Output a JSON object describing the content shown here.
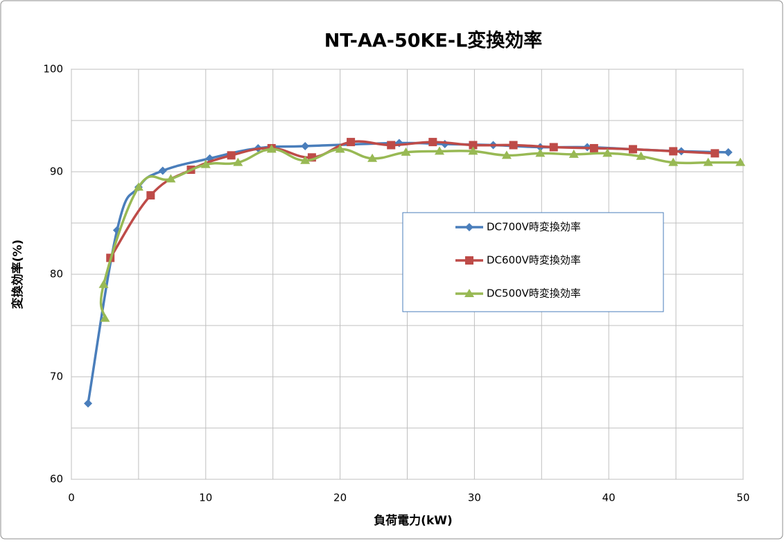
{
  "chart_data": {
    "type": "line",
    "title": "NT-AA-50KE-L変換効率",
    "x_label": "負荷電力(kW)",
    "y_label": "変換効率(%)",
    "xlim": [
      0,
      50
    ],
    "xticks": [
      0,
      10,
      20,
      30,
      40,
      50
    ],
    "x_minor_grid": [
      5,
      15,
      25,
      35,
      45
    ],
    "ylim": [
      60,
      100
    ],
    "yticks": [
      60,
      70,
      80,
      90,
      100
    ],
    "y_minor_grid": [
      65,
      75,
      85,
      95
    ],
    "grid": true,
    "legend": "right",
    "series": [
      {
        "name": "DC700V時変換効率",
        "color": "#4a7ebb",
        "marker": "diamond",
        "x": [
          1.24,
          3.4,
          5.0,
          6.8,
          10.3,
          13.9,
          17.4,
          24.4,
          27.8,
          31.4,
          34.9,
          38.4,
          41.8,
          45.4,
          48.9
        ],
        "values": [
          67.4,
          84.3,
          88.5,
          90.1,
          91.3,
          92.3,
          92.5,
          92.8,
          92.7,
          92.6,
          92.4,
          92.4,
          92.2,
          92.0,
          91.9
        ]
      },
      {
        "name": "DC600V時変換効率",
        "color": "#be4b48",
        "marker": "square",
        "x": [
          2.9,
          5.9,
          8.9,
          11.9,
          14.9,
          17.9,
          20.8,
          23.8,
          26.9,
          29.9,
          32.9,
          35.9,
          38.9,
          41.8,
          44.8,
          47.9
        ],
        "values": [
          81.6,
          87.7,
          90.2,
          91.6,
          92.3,
          91.4,
          92.9,
          92.6,
          92.9,
          92.6,
          92.6,
          92.4,
          92.3,
          92.2,
          92.0,
          91.8
        ]
      },
      {
        "name": "DC500V時変換効率",
        "color": "#98b954",
        "marker": "triangle",
        "x": [
          2.5,
          2.4,
          5.0,
          7.4,
          10.0,
          12.4,
          14.9,
          17.4,
          20.0,
          22.4,
          24.9,
          27.4,
          29.9,
          32.4,
          34.9,
          37.4,
          39.9,
          42.4,
          44.8,
          47.4,
          49.8
        ],
        "values": [
          75.7,
          79.0,
          88.5,
          89.3,
          90.7,
          90.9,
          92.2,
          91.1,
          92.2,
          91.3,
          91.9,
          92.0,
          92.0,
          91.6,
          91.8,
          91.7,
          91.8,
          91.5,
          90.9,
          90.9,
          90.9
        ]
      }
    ]
  }
}
